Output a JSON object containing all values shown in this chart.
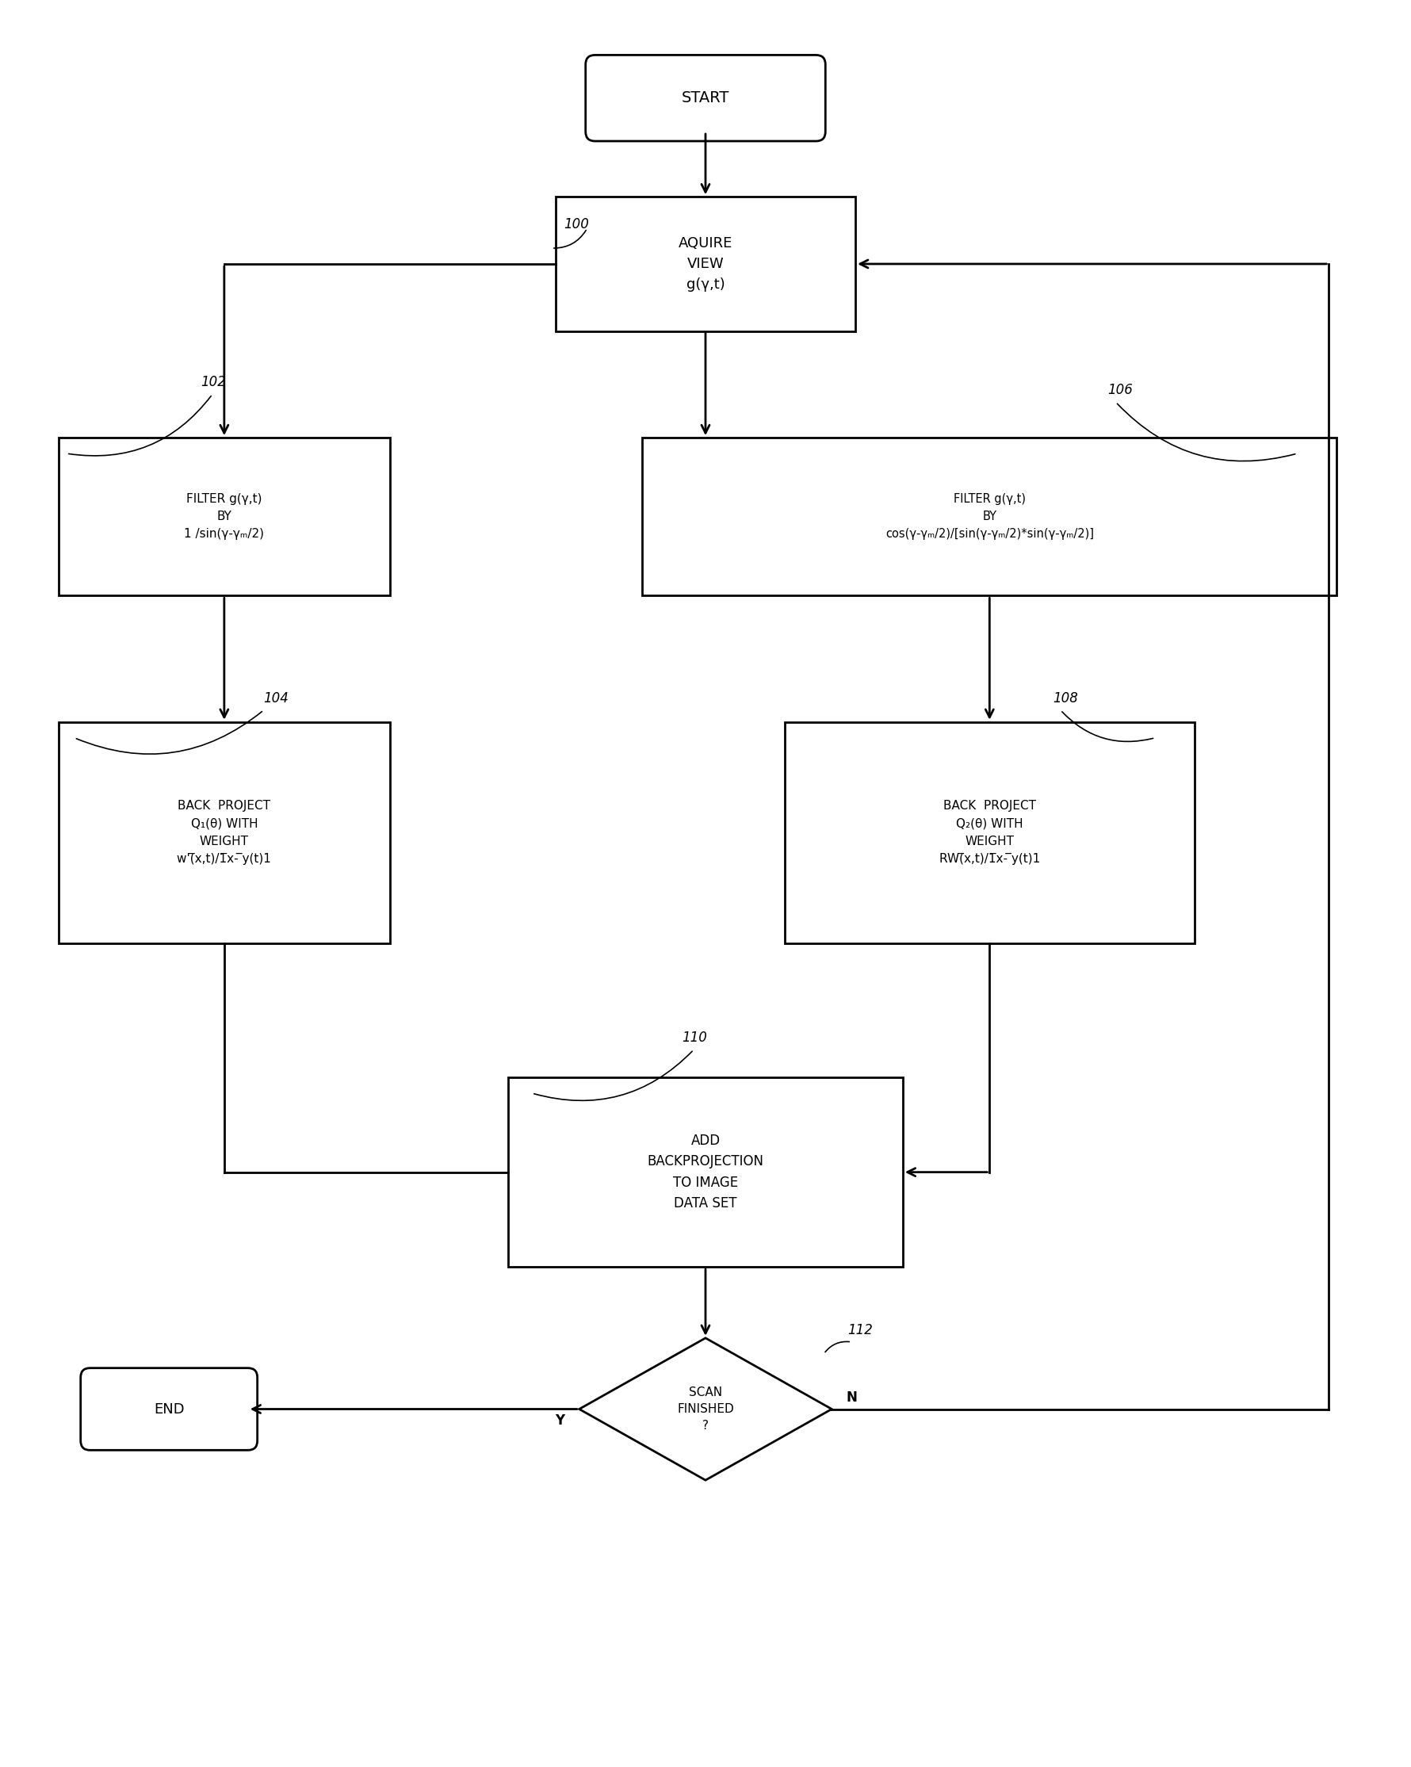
{
  "bg_color": "#ffffff",
  "line_color": "#000000",
  "text_color": "#000000",
  "start_label": "START",
  "acquire_label": "AQUIRE\nVIEW\ng(γ,t)",
  "filter_left_label": "FILTER g(γ,t)\nBY\n1 /sin(γ-γₘ/2)",
  "filter_right_line1": "FILTER g(γ,t)",
  "filter_right_line2": "BY",
  "filter_right_line3": "cos(γ-γₘ/2)/[sin(γ-γₘ/2)*sin(γ-γₘ/2)]",
  "backproj_left_label": "BACK  PROJECT\nQ₁(θ) WITH\nWEIGHT\nw'(̅x,t)/1̅x- ̅y(t)1",
  "backproj_right_label": "BACK  PROJECT\nQ₂(θ) WITH\nWEIGHT\nRW(̅x,t)/1̅x- ̅y(t)1",
  "add_label": "ADD\nBACKPROJECTION\nTO IMAGE\nDATA SET",
  "scan_label": "SCAN\nFINISHED\n?",
  "end_label": "END",
  "label_100": "100",
  "label_102": "102",
  "label_104": "104",
  "label_106": "106",
  "label_108": "108",
  "label_110": "110",
  "label_112": "112",
  "label_Y": "Y",
  "label_N": "N"
}
